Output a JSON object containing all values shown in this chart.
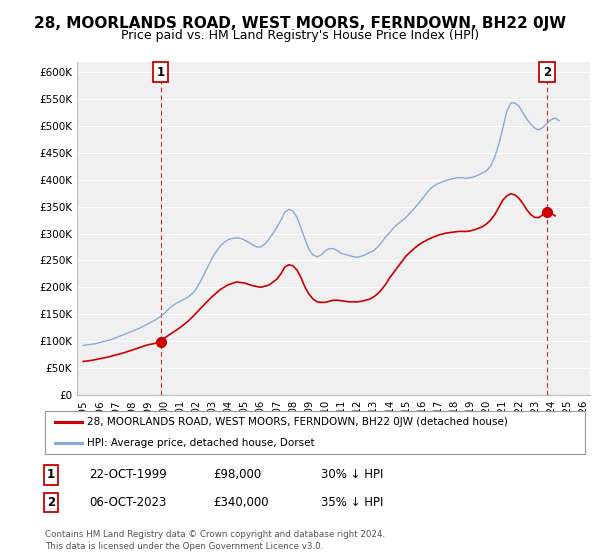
{
  "title": "28, MOORLANDS ROAD, WEST MOORS, FERNDOWN, BH22 0JW",
  "subtitle": "Price paid vs. HM Land Registry's House Price Index (HPI)",
  "ylim": [
    0,
    620000
  ],
  "yticks": [
    0,
    50000,
    100000,
    150000,
    200000,
    250000,
    300000,
    350000,
    400000,
    450000,
    500000,
    550000,
    600000
  ],
  "ytick_labels": [
    "£0",
    "£50K",
    "£100K",
    "£150K",
    "£200K",
    "£250K",
    "£300K",
    "£350K",
    "£400K",
    "£450K",
    "£500K",
    "£550K",
    "£600K"
  ],
  "xlim_start": 1994.6,
  "xlim_end": 2026.4,
  "xtick_years": [
    1995,
    1996,
    1997,
    1998,
    1999,
    2000,
    2001,
    2002,
    2003,
    2004,
    2005,
    2006,
    2007,
    2008,
    2009,
    2010,
    2011,
    2012,
    2013,
    2014,
    2015,
    2016,
    2017,
    2018,
    2019,
    2020,
    2021,
    2022,
    2023,
    2024,
    2025,
    2026
  ],
  "plot_bg_color": "#f0f0f0",
  "grid_color": "#ffffff",
  "title_fontsize": 11,
  "subtitle_fontsize": 9,
  "red_line_color": "#cc0000",
  "blue_line_color": "#88aadd",
  "sale1_x": 1999.8,
  "sale1_y": 98000,
  "sale2_x": 2023.75,
  "sale2_y": 340000,
  "legend_line1": "28, MOORLANDS ROAD, WEST MOORS, FERNDOWN, BH22 0JW (detached house)",
  "legend_line2": "HPI: Average price, detached house, Dorset",
  "footer_line1": "Contains HM Land Registry data © Crown copyright and database right 2024.",
  "footer_line2": "This data is licensed under the Open Government Licence v3.0.",
  "table_row1_num": "1",
  "table_row1_date": "22-OCT-1999",
  "table_row1_price": "£98,000",
  "table_row1_pct": "30% ↓ HPI",
  "table_row2_num": "2",
  "table_row2_date": "06-OCT-2023",
  "table_row2_price": "£340,000",
  "table_row2_pct": "35% ↓ HPI",
  "hpi_x": [
    1995.0,
    1995.25,
    1995.5,
    1995.75,
    1996.0,
    1996.25,
    1996.5,
    1996.75,
    1997.0,
    1997.25,
    1997.5,
    1997.75,
    1998.0,
    1998.25,
    1998.5,
    1998.75,
    1999.0,
    1999.25,
    1999.5,
    1999.75,
    2000.0,
    2000.25,
    2000.5,
    2000.75,
    2001.0,
    2001.25,
    2001.5,
    2001.75,
    2002.0,
    2002.25,
    2002.5,
    2002.75,
    2003.0,
    2003.25,
    2003.5,
    2003.75,
    2004.0,
    2004.25,
    2004.5,
    2004.75,
    2005.0,
    2005.25,
    2005.5,
    2005.75,
    2006.0,
    2006.25,
    2006.5,
    2006.75,
    2007.0,
    2007.25,
    2007.5,
    2007.75,
    2008.0,
    2008.25,
    2008.5,
    2008.75,
    2009.0,
    2009.25,
    2009.5,
    2009.75,
    2010.0,
    2010.25,
    2010.5,
    2010.75,
    2011.0,
    2011.25,
    2011.5,
    2011.75,
    2012.0,
    2012.25,
    2012.5,
    2012.75,
    2013.0,
    2013.25,
    2013.5,
    2013.75,
    2014.0,
    2014.25,
    2014.5,
    2014.75,
    2015.0,
    2015.25,
    2015.5,
    2015.75,
    2016.0,
    2016.25,
    2016.5,
    2016.75,
    2017.0,
    2017.25,
    2017.5,
    2017.75,
    2018.0,
    2018.25,
    2018.5,
    2018.75,
    2019.0,
    2019.25,
    2019.5,
    2019.75,
    2020.0,
    2020.25,
    2020.5,
    2020.75,
    2021.0,
    2021.25,
    2021.5,
    2021.75,
    2022.0,
    2022.25,
    2022.5,
    2022.75,
    2023.0,
    2023.25,
    2023.5,
    2023.75,
    2024.0,
    2024.25,
    2024.5
  ],
  "hpi_y": [
    92000,
    93000,
    94000,
    95000,
    97000,
    99000,
    101000,
    103000,
    106000,
    109000,
    112000,
    115000,
    118000,
    121000,
    124000,
    128000,
    132000,
    136000,
    140000,
    145000,
    151000,
    158000,
    165000,
    170000,
    174000,
    178000,
    182000,
    188000,
    197000,
    210000,
    225000,
    240000,
    255000,
    267000,
    277000,
    284000,
    289000,
    291000,
    292000,
    291000,
    288000,
    284000,
    279000,
    275000,
    275000,
    280000,
    289000,
    300000,
    312000,
    325000,
    340000,
    345000,
    342000,
    330000,
    310000,
    289000,
    270000,
    260000,
    257000,
    260000,
    268000,
    272000,
    272000,
    268000,
    263000,
    261000,
    259000,
    257000,
    256000,
    258000,
    261000,
    265000,
    268000,
    275000,
    284000,
    294000,
    302000,
    311000,
    318000,
    324000,
    330000,
    338000,
    346000,
    355000,
    364000,
    374000,
    383000,
    389000,
    393000,
    396000,
    399000,
    401000,
    403000,
    404000,
    404000,
    403000,
    404000,
    406000,
    409000,
    413000,
    417000,
    425000,
    442000,
    465000,
    495000,
    527000,
    543000,
    543000,
    537000,
    525000,
    513000,
    503000,
    496000,
    493000,
    498000,
    505000,
    512000,
    515000,
    510000
  ],
  "red_x": [
    1995.0,
    1995.5,
    1996.0,
    1996.5,
    1997.0,
    1997.5,
    1998.0,
    1998.5,
    1999.0,
    1999.5,
    1999.8,
    2000.0,
    2000.5,
    2001.0,
    2001.5,
    2002.0,
    2002.5,
    2003.0,
    2003.5,
    2004.0,
    2004.5,
    2005.0,
    2005.5,
    2006.0,
    2006.5,
    2007.0,
    2007.25,
    2007.5,
    2007.75,
    2008.0,
    2008.25,
    2008.5,
    2008.75,
    2009.0,
    2009.25,
    2009.5,
    2009.75,
    2010.0,
    2010.25,
    2010.5,
    2010.75,
    2011.0,
    2011.25,
    2011.5,
    2011.75,
    2012.0,
    2012.25,
    2012.5,
    2012.75,
    2013.0,
    2013.25,
    2013.5,
    2013.75,
    2014.0,
    2014.25,
    2014.5,
    2014.75,
    2015.0,
    2015.25,
    2015.5,
    2015.75,
    2016.0,
    2016.25,
    2016.5,
    2016.75,
    2017.0,
    2017.25,
    2017.5,
    2017.75,
    2018.0,
    2018.25,
    2018.5,
    2018.75,
    2019.0,
    2019.25,
    2019.5,
    2019.75,
    2020.0,
    2020.25,
    2020.5,
    2020.75,
    2021.0,
    2021.25,
    2021.5,
    2021.75,
    2022.0,
    2022.25,
    2022.5,
    2022.75,
    2023.0,
    2023.25,
    2023.5,
    2023.75,
    2024.0,
    2024.25
  ],
  "red_y": [
    62000,
    64000,
    67000,
    70000,
    74000,
    78000,
    83000,
    88000,
    93000,
    96000,
    98000,
    105000,
    115000,
    125000,
    137000,
    152000,
    168000,
    183000,
    196000,
    205000,
    210000,
    208000,
    203000,
    200000,
    204000,
    215000,
    225000,
    238000,
    242000,
    240000,
    232000,
    218000,
    200000,
    187000,
    178000,
    173000,
    172000,
    172000,
    174000,
    176000,
    176000,
    175000,
    174000,
    173000,
    173000,
    173000,
    174000,
    176000,
    178000,
    182000,
    188000,
    196000,
    206000,
    218000,
    228000,
    238000,
    248000,
    258000,
    265000,
    272000,
    278000,
    283000,
    287000,
    291000,
    294000,
    297000,
    299000,
    301000,
    302000,
    303000,
    304000,
    304000,
    304000,
    305000,
    307000,
    310000,
    313000,
    318000,
    325000,
    335000,
    348000,
    362000,
    370000,
    374000,
    372000,
    366000,
    356000,
    344000,
    335000,
    330000,
    330000,
    335000,
    340000,
    338000,
    333000
  ]
}
